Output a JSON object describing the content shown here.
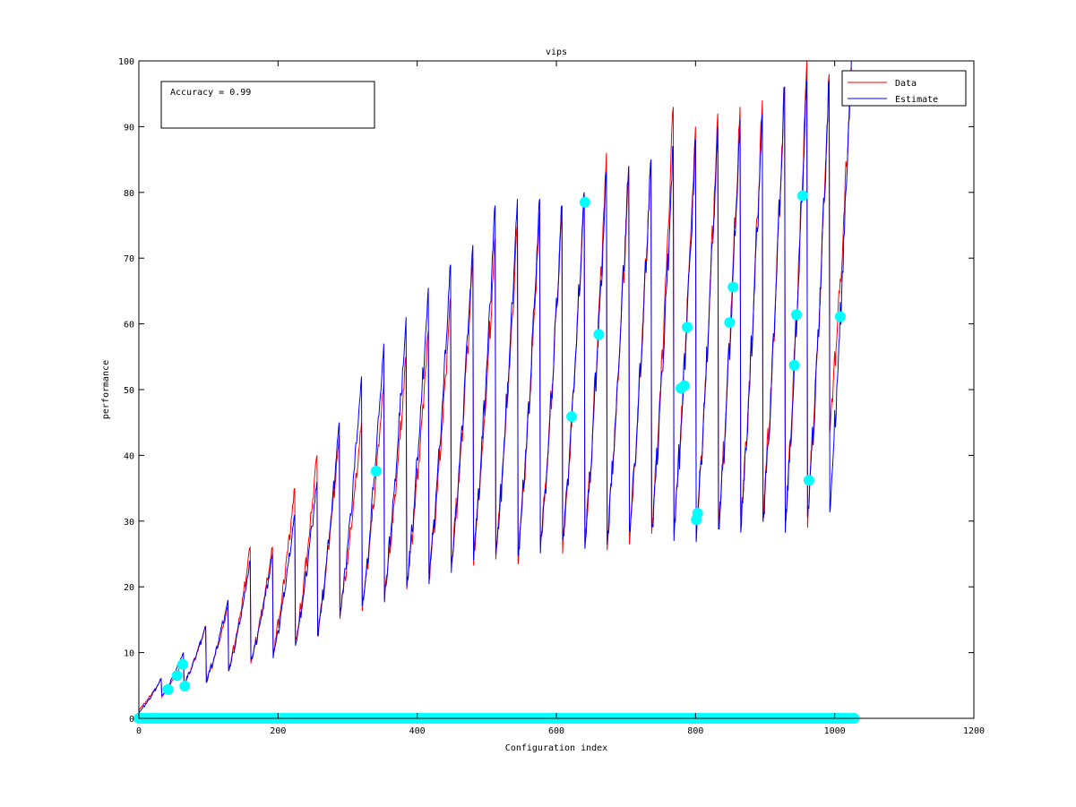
{
  "chart_data": {
    "type": "line",
    "title": "vips",
    "xlabel": "Configuration index",
    "ylabel": "performance",
    "xlim": [
      0,
      1200
    ],
    "ylim": [
      0,
      100
    ],
    "xticks": [
      0,
      200,
      400,
      600,
      800,
      1000,
      1200
    ],
    "yticks": [
      0,
      10,
      20,
      30,
      40,
      50,
      60,
      70,
      80,
      90,
      100
    ],
    "grid": false,
    "legend_position": "top-right",
    "annotation": "Accuracy = 0.99",
    "n_points": 1024,
    "series": [
      {
        "name": "Data",
        "color": "#ff0000",
        "segments": [
          {
            "x_start": 0,
            "x_end": 32,
            "y_start": 1.5,
            "y_peak": 6
          },
          {
            "x_start": 33,
            "x_end": 64,
            "y_start": 3.5,
            "y_peak": 9
          },
          {
            "x_start": 65,
            "x_end": 96,
            "y_start": 5.5,
            "y_peak": 14
          },
          {
            "x_start": 97,
            "x_end": 128,
            "y_start": 6,
            "y_peak": 17
          },
          {
            "x_start": 129,
            "x_end": 160,
            "y_start": 7.5,
            "y_peak": 26
          },
          {
            "x_start": 161,
            "x_end": 192,
            "y_start": 9,
            "y_peak": 26
          },
          {
            "x_start": 193,
            "x_end": 224,
            "y_start": 10.5,
            "y_peak": 35
          },
          {
            "x_start": 225,
            "x_end": 256,
            "y_start": 12,
            "y_peak": 40
          },
          {
            "x_start": 257,
            "x_end": 288,
            "y_start": 14,
            "y_peak": 43
          },
          {
            "x_start": 289,
            "x_end": 320,
            "y_start": 16.5,
            "y_peak": 45
          },
          {
            "x_start": 321,
            "x_end": 352,
            "y_start": 18,
            "y_peak": 51
          },
          {
            "x_start": 353,
            "x_end": 384,
            "y_start": 19.5,
            "y_peak": 55
          },
          {
            "x_start": 385,
            "x_end": 416,
            "y_start": 21,
            "y_peak": 59
          },
          {
            "x_start": 417,
            "x_end": 448,
            "y_start": 22.5,
            "y_peak": 64
          },
          {
            "x_start": 449,
            "x_end": 480,
            "y_start": 24.5,
            "y_peak": 70
          },
          {
            "x_start": 481,
            "x_end": 512,
            "y_start": 25.5,
            "y_peak": 73
          },
          {
            "x_start": 513,
            "x_end": 544,
            "y_start": 26.5,
            "y_peak": 75
          },
          {
            "x_start": 545,
            "x_end": 576,
            "y_start": 26,
            "y_peak": 77
          },
          {
            "x_start": 577,
            "x_end": 608,
            "y_start": 27,
            "y_peak": 78
          },
          {
            "x_start": 609,
            "x_end": 640,
            "y_start": 27.5,
            "y_peak": 80
          },
          {
            "x_start": 641,
            "x_end": 672,
            "y_start": 28,
            "y_peak": 86
          },
          {
            "x_start": 673,
            "x_end": 704,
            "y_start": 28.5,
            "y_peak": 84
          },
          {
            "x_start": 705,
            "x_end": 736,
            "y_start": 29,
            "y_peak": 85
          },
          {
            "x_start": 737,
            "x_end": 768,
            "y_start": 29.5,
            "y_peak": 93
          },
          {
            "x_start": 769,
            "x_end": 800,
            "y_start": 30,
            "y_peak": 90
          },
          {
            "x_start": 801,
            "x_end": 832,
            "y_start": 30,
            "y_peak": 92
          },
          {
            "x_start": 833,
            "x_end": 864,
            "y_start": 30.5,
            "y_peak": 93
          },
          {
            "x_start": 865,
            "x_end": 896,
            "y_start": 31,
            "y_peak": 94
          },
          {
            "x_start": 897,
            "x_end": 928,
            "y_start": 31.5,
            "y_peak": 96
          },
          {
            "x_start": 929,
            "x_end": 960,
            "y_start": 31,
            "y_peak": 100
          },
          {
            "x_start": 961,
            "x_end": 992,
            "y_start": 32,
            "y_peak": 98
          },
          {
            "x_start": 993,
            "x_end": 1024,
            "y_start": 45,
            "y_peak": 99
          }
        ]
      },
      {
        "name": "Estimate",
        "color": "#0000ff",
        "segments": [
          {
            "x_start": 0,
            "x_end": 32,
            "y_start": 1,
            "y_peak": 6
          },
          {
            "x_start": 33,
            "x_end": 64,
            "y_start": 3.5,
            "y_peak": 10
          },
          {
            "x_start": 65,
            "x_end": 96,
            "y_start": 5.5,
            "y_peak": 14
          },
          {
            "x_start": 97,
            "x_end": 128,
            "y_start": 6,
            "y_peak": 18
          },
          {
            "x_start": 129,
            "x_end": 160,
            "y_start": 7.5,
            "y_peak": 24
          },
          {
            "x_start": 161,
            "x_end": 192,
            "y_start": 9,
            "y_peak": 25
          },
          {
            "x_start": 193,
            "x_end": 224,
            "y_start": 10,
            "y_peak": 31
          },
          {
            "x_start": 225,
            "x_end": 256,
            "y_start": 12,
            "y_peak": 36
          },
          {
            "x_start": 257,
            "x_end": 288,
            "y_start": 13.5,
            "y_peak": 45
          },
          {
            "x_start": 289,
            "x_end": 320,
            "y_start": 16.5,
            "y_peak": 52
          },
          {
            "x_start": 321,
            "x_end": 352,
            "y_start": 18,
            "y_peak": 57
          },
          {
            "x_start": 353,
            "x_end": 384,
            "y_start": 19.5,
            "y_peak": 61
          },
          {
            "x_start": 385,
            "x_end": 416,
            "y_start": 21,
            "y_peak": 65.5
          },
          {
            "x_start": 417,
            "x_end": 448,
            "y_start": 22.5,
            "y_peak": 69
          },
          {
            "x_start": 449,
            "x_end": 480,
            "y_start": 24.5,
            "y_peak": 72
          },
          {
            "x_start": 481,
            "x_end": 512,
            "y_start": 25.5,
            "y_peak": 78
          },
          {
            "x_start": 513,
            "x_end": 544,
            "y_start": 26,
            "y_peak": 79
          },
          {
            "x_start": 545,
            "x_end": 576,
            "y_start": 26,
            "y_peak": 79
          },
          {
            "x_start": 577,
            "x_end": 608,
            "y_start": 27,
            "y_peak": 78
          },
          {
            "x_start": 609,
            "x_end": 640,
            "y_start": 27.5,
            "y_peak": 80
          },
          {
            "x_start": 641,
            "x_end": 672,
            "y_start": 28,
            "y_peak": 83
          },
          {
            "x_start": 673,
            "x_end": 704,
            "y_start": 28.5,
            "y_peak": 84
          },
          {
            "x_start": 705,
            "x_end": 736,
            "y_start": 29,
            "y_peak": 85
          },
          {
            "x_start": 737,
            "x_end": 768,
            "y_start": 29.5,
            "y_peak": 87
          },
          {
            "x_start": 769,
            "x_end": 800,
            "y_start": 30,
            "y_peak": 88
          },
          {
            "x_start": 801,
            "x_end": 832,
            "y_start": 30,
            "y_peak": 90
          },
          {
            "x_start": 833,
            "x_end": 864,
            "y_start": 30.5,
            "y_peak": 91
          },
          {
            "x_start": 865,
            "x_end": 896,
            "y_start": 31,
            "y_peak": 92
          },
          {
            "x_start": 897,
            "x_end": 928,
            "y_start": 31.5,
            "y_peak": 96
          },
          {
            "x_start": 929,
            "x_end": 960,
            "y_start": 31,
            "y_peak": 97
          },
          {
            "x_start": 961,
            "x_end": 992,
            "y_start": 32,
            "y_peak": 97
          },
          {
            "x_start": 993,
            "x_end": 1024,
            "y_start": 34,
            "y_peak": 100
          }
        ]
      }
    ],
    "sampled_points": {
      "color": "#00ffff",
      "points": [
        {
          "x": 42,
          "y": 4.4
        },
        {
          "x": 55,
          "y": 6.5
        },
        {
          "x": 63,
          "y": 8.2
        },
        {
          "x": 66,
          "y": 4.9
        },
        {
          "x": 341,
          "y": 37.6
        },
        {
          "x": 622,
          "y": 45.9
        },
        {
          "x": 641,
          "y": 78.5
        },
        {
          "x": 661,
          "y": 58.4
        },
        {
          "x": 779,
          "y": 50.2
        },
        {
          "x": 784,
          "y": 50.6
        },
        {
          "x": 788,
          "y": 59.5
        },
        {
          "x": 801,
          "y": 30.2
        },
        {
          "x": 803,
          "y": 31.2
        },
        {
          "x": 849,
          "y": 60.2
        },
        {
          "x": 854,
          "y": 65.6
        },
        {
          "x": 942,
          "y": 53.7
        },
        {
          "x": 945,
          "y": 61.4
        },
        {
          "x": 954,
          "y": 79.5
        },
        {
          "x": 963,
          "y": 36.2
        },
        {
          "x": 1008,
          "y": 61.1
        }
      ],
      "baseline_row": {
        "x_start": 0,
        "x_end": 1030,
        "step": 4,
        "y": 0
      }
    }
  }
}
